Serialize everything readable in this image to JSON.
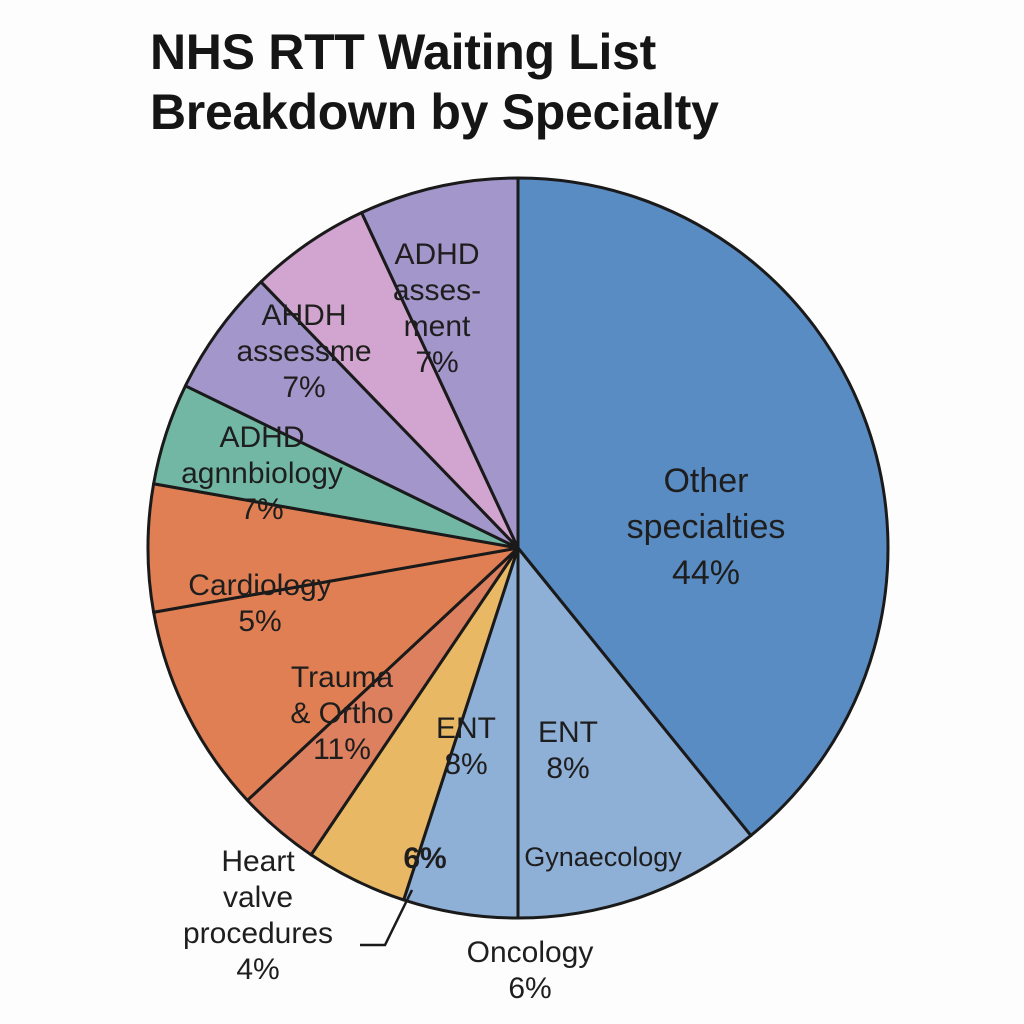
{
  "chart_data": {
    "type": "pie",
    "title": [
      "NHS RTT Waiting List",
      "Breakdown by Specialty"
    ],
    "slices": [
      {
        "label": [
          "Other",
          "specialties"
        ],
        "value_label": "44%",
        "value": 44,
        "color": "#5a8cc4"
      },
      {
        "label": [
          "Gynaecology"
        ],
        "value_label": "",
        "value": 9,
        "color": "#8eafd6"
      },
      {
        "label": [
          "ENT"
        ],
        "value_label": "8%",
        "value": 8,
        "color": "#8eafd6"
      },
      {
        "label": [
          "Oncology"
        ],
        "value_label": "6%",
        "value": 6,
        "color": "#e8b865"
      },
      {
        "label": [
          "ENT"
        ],
        "value_label": "8%",
        "value": 8,
        "color": "#dd8060"
      },
      {
        "label": [
          "Heart",
          "valve",
          "procedures"
        ],
        "value_label": "4%",
        "value": 4,
        "color": "#e07f54"
      },
      {
        "label": [
          "Trauma",
          "& Ortho"
        ],
        "value_label": "11%",
        "value": 11,
        "color": "#e07f54"
      },
      {
        "label": [
          "Cardiology"
        ],
        "value_label": "5%",
        "value": 5,
        "color": "#72b7a3"
      },
      {
        "label": [
          "ADHD",
          "agnnbiology"
        ],
        "value_label": "7%",
        "value": 7,
        "color": "#a396cb"
      },
      {
        "label": [
          "AHDH",
          "assessme"
        ],
        "value_label": "7%",
        "value": 7,
        "color": "#d1a5cf"
      },
      {
        "label": [
          "ADHD",
          "asses-",
          "ment"
        ],
        "value_label": "7%",
        "value": 7,
        "color": "#a396cb"
      }
    ]
  }
}
